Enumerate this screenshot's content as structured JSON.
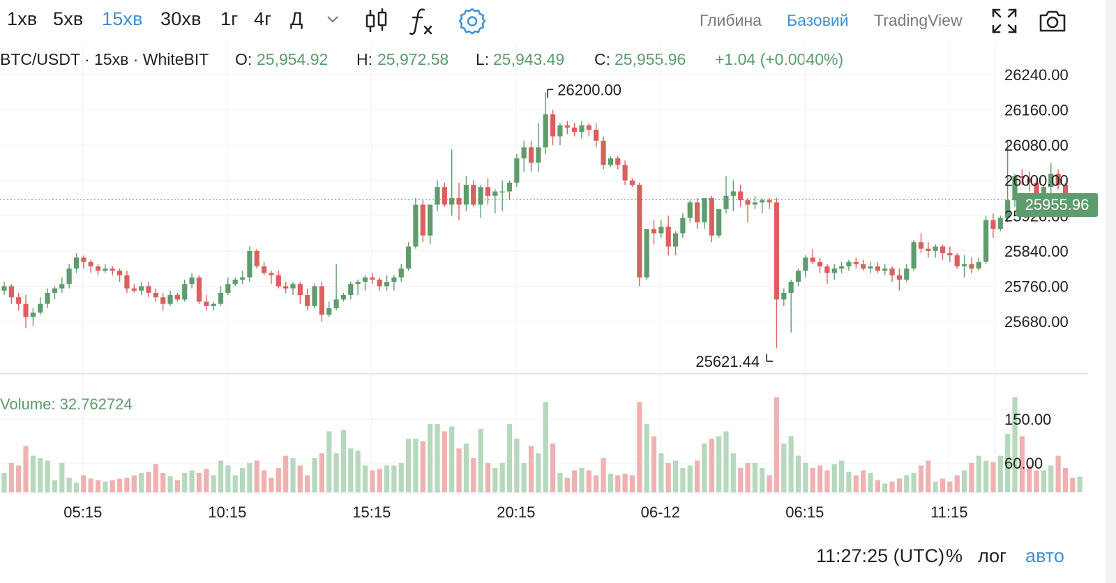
{
  "timeframes": [
    {
      "label": "1хв",
      "active": false
    },
    {
      "label": "5хв",
      "active": false
    },
    {
      "label": "15хв",
      "active": true
    },
    {
      "label": "30хв",
      "active": false
    },
    {
      "label": "1г",
      "active": false
    },
    {
      "label": "4г",
      "active": false
    },
    {
      "label": "Д",
      "active": false
    }
  ],
  "modes": [
    {
      "label": "Глибина",
      "active": false
    },
    {
      "label": "Базовий",
      "active": true
    },
    {
      "label": "TradingView",
      "active": false
    }
  ],
  "icons": {
    "dropdown": "chevron-down-icon",
    "chart_type": "candlestick-icon",
    "indicators": "function-icon",
    "settings": "gear-icon",
    "fullscreen": "fullscreen-icon",
    "screenshot": "camera-icon"
  },
  "legend": {
    "symbol": "BTC/USDT · 15хв · WhiteBIT",
    "o_label": "O:",
    "o_value": "25,954.92",
    "h_label": "H:",
    "h_value": "25,972.58",
    "l_label": "L:",
    "l_value": "25,943.49",
    "c_label": "C:",
    "c_value": "25,955.96",
    "change": "+1.04 (+0.0040%)"
  },
  "volume_legend": "Volume: 32.762724",
  "last_price_tag": "25955.96",
  "bottom": {
    "clock": "11:27:25 (UTC)",
    "percent": "%",
    "log": "лог",
    "auto": "авто"
  },
  "colors": {
    "up": "#5e9c6d",
    "down": "#d9605e",
    "up_volume": "#b6d8bc",
    "down_volume": "#efb1b1",
    "accent": "#3f8fd6"
  },
  "chart_data": {
    "type": "candlestick",
    "price_ticks": [
      "26240.00",
      "26160.00",
      "26080.00",
      "26000.00",
      "25920.00",
      "25840.00",
      "25760.00",
      "25680.00"
    ],
    "price_range": [
      25580,
      26260
    ],
    "volume_ticks": [
      "150.00",
      "60.00"
    ],
    "volume_range": [
      0,
      215
    ],
    "x_ticks": [
      "05:15",
      "10:15",
      "15:15",
      "20:15",
      "06-12",
      "06:15",
      "11:15"
    ],
    "last_price": 25955.96,
    "high_annotation": {
      "label": "26200.00",
      "value": 26200.0
    },
    "low_annotation": {
      "label": "25621.44",
      "value": 25621.44
    },
    "candles": [
      [
        25750,
        25770,
        25740,
        25760,
        40
      ],
      [
        25760,
        25765,
        25720,
        25735,
        60
      ],
      [
        25735,
        25745,
        25705,
        25720,
        55
      ],
      [
        25720,
        25740,
        25665,
        25690,
        95
      ],
      [
        25690,
        25710,
        25670,
        25700,
        75
      ],
      [
        25700,
        25735,
        25695,
        25720,
        70
      ],
      [
        25720,
        25755,
        25710,
        25745,
        65
      ],
      [
        25745,
        25760,
        25730,
        25755,
        25
      ],
      [
        25755,
        25780,
        25745,
        25765,
        60
      ],
      [
        25765,
        25810,
        25755,
        25800,
        30
      ],
      [
        25800,
        25835,
        25790,
        25825,
        20
      ],
      [
        25825,
        25830,
        25800,
        25815,
        35
      ],
      [
        25815,
        25820,
        25790,
        25805,
        28
      ],
      [
        25805,
        25810,
        25785,
        25795,
        25
      ],
      [
        25795,
        25810,
        25790,
        25800,
        22
      ],
      [
        25800,
        25805,
        25785,
        25795,
        25
      ],
      [
        25795,
        25800,
        25770,
        25785,
        28
      ],
      [
        25785,
        25795,
        25745,
        25755,
        30
      ],
      [
        25755,
        25765,
        25745,
        25750,
        35
      ],
      [
        25750,
        25770,
        25740,
        25760,
        40
      ],
      [
        25760,
        25770,
        25735,
        25745,
        42
      ],
      [
        25745,
        25755,
        25725,
        25735,
        58
      ],
      [
        25735,
        25745,
        25705,
        25720,
        40
      ],
      [
        25720,
        25750,
        25715,
        25740,
        33
      ],
      [
        25740,
        25745,
        25725,
        25730,
        25
      ],
      [
        25730,
        25775,
        25725,
        25765,
        40
      ],
      [
        25765,
        25790,
        25755,
        25780,
        45
      ],
      [
        25780,
        25785,
        25720,
        25725,
        40
      ],
      [
        25725,
        25740,
        25705,
        25715,
        48
      ],
      [
        25715,
        25725,
        25705,
        25720,
        35
      ],
      [
        25720,
        25760,
        25715,
        25745,
        65
      ],
      [
        25745,
        25780,
        25740,
        25765,
        55
      ],
      [
        25765,
        25780,
        25760,
        25775,
        35
      ],
      [
        25775,
        25795,
        25765,
        25780,
        50
      ],
      [
        25780,
        25850,
        25770,
        25840,
        60
      ],
      [
        25840,
        25845,
        25800,
        25805,
        65
      ],
      [
        25805,
        25815,
        25785,
        25790,
        45
      ],
      [
        25790,
        25795,
        25765,
        25785,
        30
      ],
      [
        25785,
        25795,
        25755,
        25760,
        50
      ],
      [
        25760,
        25770,
        25745,
        25755,
        75
      ],
      [
        25755,
        25770,
        25740,
        25765,
        70
      ],
      [
        25765,
        25770,
        25720,
        25740,
        55
      ],
      [
        25740,
        25755,
        25705,
        25715,
        35
      ],
      [
        25715,
        25765,
        25710,
        25760,
        70
      ],
      [
        25760,
        25770,
        25680,
        25695,
        80
      ],
      [
        25695,
        25725,
        25690,
        25710,
        125
      ],
      [
        25710,
        25810,
        25705,
        25730,
        80
      ],
      [
        25730,
        25745,
        25725,
        25740,
        128
      ],
      [
        25740,
        25770,
        25730,
        25765,
        90
      ],
      [
        25765,
        25775,
        25740,
        25770,
        85
      ],
      [
        25770,
        25785,
        25750,
        25780,
        55
      ],
      [
        25780,
        25790,
        25765,
        25775,
        45
      ],
      [
        25775,
        25780,
        25750,
        25760,
        48
      ],
      [
        25760,
        25785,
        25750,
        25770,
        55
      ],
      [
        25770,
        25785,
        25750,
        25780,
        55
      ],
      [
        25780,
        25810,
        25770,
        25800,
        60
      ],
      [
        25800,
        25860,
        25795,
        25850,
        110
      ],
      [
        25850,
        25960,
        25845,
        25945,
        110
      ],
      [
        25945,
        25955,
        25860,
        25875,
        105
      ],
      [
        25875,
        25945,
        25855,
        25945,
        140
      ],
      [
        25945,
        26000,
        25930,
        25985,
        140
      ],
      [
        25985,
        25995,
        25940,
        25945,
        125
      ],
      [
        25945,
        26070,
        25920,
        25960,
        135
      ],
      [
        25960,
        25995,
        25910,
        25945,
        90
      ],
      [
        25945,
        26010,
        25930,
        25990,
        100
      ],
      [
        25990,
        26000,
        25940,
        25945,
        70
      ],
      [
        25945,
        25990,
        25915,
        25985,
        130
      ],
      [
        25985,
        26005,
        25945,
        25965,
        60
      ],
      [
        25965,
        25980,
        25925,
        25975,
        50
      ],
      [
        25975,
        26000,
        25930,
        25975,
        60
      ],
      [
        25975,
        26000,
        25955,
        25995,
        140
      ],
      [
        25995,
        26060,
        25985,
        26050,
        110
      ],
      [
        26050,
        26090,
        26020,
        26075,
        60
      ],
      [
        26075,
        26090,
        26020,
        26040,
        95
      ],
      [
        26040,
        26130,
        26020,
        26075,
        80
      ],
      [
        26075,
        26200,
        26060,
        26150,
        185
      ],
      [
        26150,
        26160,
        26080,
        26100,
        100
      ],
      [
        26100,
        26130,
        26080,
        26125,
        40
      ],
      [
        26125,
        26135,
        26105,
        26120,
        30
      ],
      [
        26120,
        26130,
        26100,
        26110,
        45
      ],
      [
        26110,
        26135,
        26095,
        26125,
        50
      ],
      [
        26125,
        26130,
        26100,
        26115,
        45
      ],
      [
        26115,
        26130,
        26075,
        26090,
        35
      ],
      [
        26090,
        26100,
        26025,
        26035,
        70
      ],
      [
        26035,
        26055,
        26030,
        26050,
        38
      ],
      [
        26050,
        26055,
        26025,
        26035,
        35
      ],
      [
        26035,
        26045,
        25990,
        26000,
        38
      ],
      [
        26000,
        26005,
        25985,
        25990,
        35
      ],
      [
        25990,
        25995,
        25760,
        25780,
        185
      ],
      [
        25780,
        25890,
        25775,
        25890,
        140
      ],
      [
        25890,
        25910,
        25855,
        25880,
        115
      ],
      [
        25880,
        25910,
        25870,
        25895,
        80
      ],
      [
        25895,
        25920,
        25830,
        25850,
        60
      ],
      [
        25850,
        25885,
        25830,
        25880,
        65
      ],
      [
        25880,
        25925,
        25870,
        25915,
        50
      ],
      [
        25915,
        25955,
        25905,
        25950,
        55
      ],
      [
        25950,
        25960,
        25890,
        25905,
        65
      ],
      [
        25905,
        25960,
        25890,
        25960,
        100
      ],
      [
        25960,
        25965,
        25860,
        25875,
        110
      ],
      [
        25875,
        25935,
        25870,
        25935,
        115
      ],
      [
        25935,
        26010,
        25925,
        25965,
        125
      ],
      [
        25965,
        26000,
        25930,
        25975,
        80
      ],
      [
        25975,
        25990,
        25940,
        25955,
        50
      ],
      [
        25955,
        25960,
        25905,
        25945,
        60
      ],
      [
        25945,
        25965,
        25935,
        25950,
        60
      ],
      [
        25950,
        25960,
        25925,
        25955,
        50
      ],
      [
        25955,
        25960,
        25935,
        25950,
        35
      ],
      [
        25950,
        25960,
        25620,
        25730,
        195
      ],
      [
        25730,
        25755,
        25715,
        25745,
        100
      ],
      [
        25745,
        25775,
        25655,
        25770,
        115
      ],
      [
        25770,
        25800,
        25760,
        25795,
        75
      ],
      [
        25795,
        25830,
        25780,
        25825,
        60
      ],
      [
        25825,
        25845,
        25810,
        25815,
        50
      ],
      [
        25815,
        25825,
        25790,
        25805,
        55
      ],
      [
        25805,
        25810,
        25765,
        25790,
        45
      ],
      [
        25790,
        25810,
        25775,
        25800,
        58
      ],
      [
        25800,
        25815,
        25790,
        25805,
        65
      ],
      [
        25805,
        25820,
        25795,
        25815,
        42
      ],
      [
        25815,
        25825,
        25800,
        25810,
        35
      ],
      [
        25810,
        25820,
        25795,
        25800,
        45
      ],
      [
        25800,
        25815,
        25790,
        25805,
        40
      ],
      [
        25805,
        25815,
        25790,
        25795,
        25
      ],
      [
        25795,
        25810,
        25785,
        25800,
        18
      ],
      [
        25800,
        25805,
        25770,
        25785,
        22
      ],
      [
        25785,
        25800,
        25750,
        25775,
        28
      ],
      [
        25775,
        25810,
        25770,
        25800,
        35
      ],
      [
        25800,
        25865,
        25795,
        25860,
        40
      ],
      [
        25860,
        25880,
        25835,
        25845,
        55
      ],
      [
        25845,
        25860,
        25825,
        25840,
        65
      ],
      [
        25840,
        25855,
        25825,
        25850,
        22
      ],
      [
        25850,
        25855,
        25820,
        25835,
        28
      ],
      [
        25835,
        25850,
        25815,
        25830,
        22
      ],
      [
        25830,
        25835,
        25800,
        25805,
        35
      ],
      [
        25805,
        25830,
        25780,
        25810,
        45
      ],
      [
        25810,
        25825,
        25790,
        25800,
        60
      ],
      [
        25800,
        25825,
        25795,
        25815,
        75
      ],
      [
        25815,
        25920,
        25810,
        25910,
        65
      ],
      [
        25910,
        25925,
        25870,
        25890,
        62
      ],
      [
        25890,
        25920,
        25885,
        25915,
        75
      ],
      [
        25915,
        26090,
        25905,
        25955,
        120
      ],
      [
        25955,
        26015,
        25940,
        26010,
        195
      ],
      [
        26010,
        26025,
        25990,
        26005,
        115
      ],
      [
        26005,
        26020,
        25975,
        25995,
        55
      ],
      [
        25995,
        26000,
        25945,
        25955,
        45
      ],
      [
        25955,
        25990,
        25945,
        25985,
        45
      ],
      [
        25985,
        26040,
        25965,
        26015,
        55
      ],
      [
        26015,
        26025,
        25980,
        25990,
        75
      ],
      [
        25990,
        25995,
        25950,
        25960,
        50
      ],
      [
        25960,
        25965,
        25945,
        25950,
        30
      ],
      [
        25950,
        25970,
        25945,
        25955,
        32
      ]
    ]
  }
}
